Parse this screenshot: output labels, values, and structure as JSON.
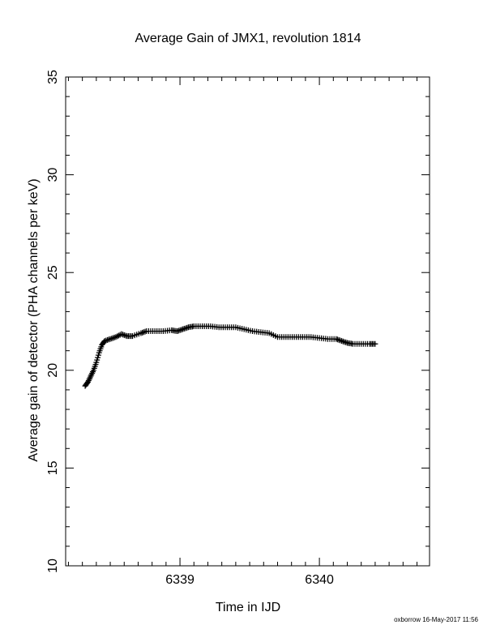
{
  "chart_data": {
    "type": "scatter",
    "title": "Average Gain of JMX1, revolution 1814",
    "xlabel": "Time in IJD",
    "ylabel": "Average gain of detector (PHA channels per keV)",
    "xlim": [
      6338.18,
      6340.79
    ],
    "ylim": [
      10,
      35
    ],
    "xticks": [
      6339,
      6340
    ],
    "xtick_labels": [
      "6339",
      "6340"
    ],
    "yticks": [
      10,
      15,
      20,
      25,
      30,
      35
    ],
    "ytick_labels": [
      "10",
      "15",
      "20",
      "25",
      "30",
      "35"
    ],
    "marker": "plus",
    "marker_color": "#000000",
    "grid": false,
    "series": [
      {
        "points": [
          [
            6338.32,
            19.2
          ],
          [
            6338.34,
            19.4
          ],
          [
            6338.36,
            19.7
          ],
          [
            6338.38,
            20.0
          ],
          [
            6338.4,
            20.4
          ],
          [
            6338.42,
            20.9
          ],
          [
            6338.44,
            21.3
          ],
          [
            6338.46,
            21.5
          ],
          [
            6338.5,
            21.6
          ],
          [
            6338.54,
            21.7
          ],
          [
            6338.58,
            21.85
          ],
          [
            6338.62,
            21.75
          ],
          [
            6338.66,
            21.75
          ],
          [
            6338.72,
            21.9
          ],
          [
            6338.76,
            22.0
          ],
          [
            6338.82,
            22.0
          ],
          [
            6338.88,
            22.0
          ],
          [
            6338.94,
            22.05
          ],
          [
            6338.98,
            22.0
          ],
          [
            6339.02,
            22.1
          ],
          [
            6339.06,
            22.2
          ],
          [
            6339.1,
            22.25
          ],
          [
            6339.16,
            22.25
          ],
          [
            6339.22,
            22.25
          ],
          [
            6339.28,
            22.2
          ],
          [
            6339.34,
            22.2
          ],
          [
            6339.4,
            22.2
          ],
          [
            6339.46,
            22.1
          ],
          [
            6339.52,
            22.0
          ],
          [
            6339.58,
            21.95
          ],
          [
            6339.64,
            21.9
          ],
          [
            6339.7,
            21.7
          ],
          [
            6339.76,
            21.7
          ],
          [
            6339.82,
            21.7
          ],
          [
            6339.88,
            21.7
          ],
          [
            6339.94,
            21.7
          ],
          [
            6340.0,
            21.65
          ],
          [
            6340.06,
            21.6
          ],
          [
            6340.12,
            21.6
          ],
          [
            6340.16,
            21.5
          ],
          [
            6340.2,
            21.4
          ],
          [
            6340.24,
            21.35
          ],
          [
            6340.3,
            21.35
          ],
          [
            6340.36,
            21.35
          ],
          [
            6340.4,
            21.35
          ]
        ]
      }
    ]
  },
  "footer": "oxborrow 16-May-2017 11:56"
}
